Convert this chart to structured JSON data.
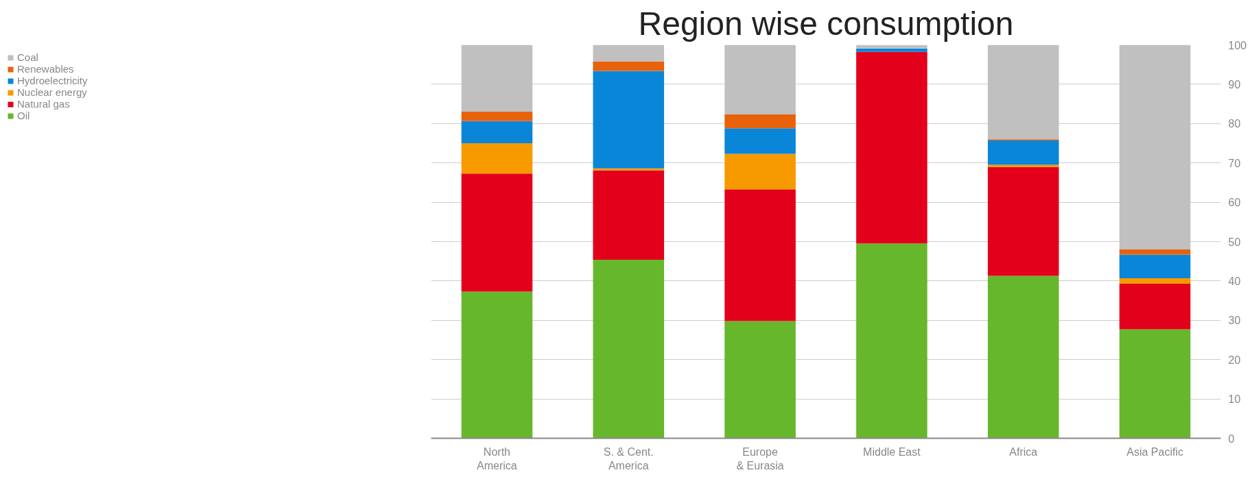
{
  "chart_data": {
    "type": "bar",
    "title": "Region wise consumption",
    "stacked": true,
    "categories": [
      "North\nAmerica",
      "S. & Cent.\nAmerica",
      "Europe\n& Eurasia",
      "Middle East",
      "Africa",
      "Asia Pacific"
    ],
    "series": [
      {
        "name": "Oil",
        "color": "#67b72c",
        "values": [
          37.3,
          45.4,
          29.8,
          49.5,
          41.3,
          27.7
        ]
      },
      {
        "name": "Natural gas",
        "color": "#e3001b",
        "values": [
          30,
          22.7,
          33.5,
          48.7,
          27.6,
          11.6
        ]
      },
      {
        "name": "Nuclear energy",
        "color": "#f79a00",
        "values": [
          7.7,
          0.5,
          9,
          0,
          0.6,
          1.4
        ]
      },
      {
        "name": "Hydroelectricity",
        "color": "#0a86d8",
        "values": [
          5.6,
          24.8,
          6.5,
          0.9,
          6.2,
          6
        ]
      },
      {
        "name": "Renewables",
        "color": "#e8620c",
        "values": [
          2.4,
          2.4,
          3.5,
          0,
          0.3,
          1.3
        ]
      },
      {
        "name": "Coal",
        "color": "#c0c0c0",
        "values": [
          17,
          4.2,
          17.7,
          0.9,
          24,
          52
        ]
      }
    ],
    "ylim": [
      0,
      100
    ],
    "yticks": [
      0,
      10,
      20,
      30,
      40,
      50,
      60,
      70,
      80,
      90,
      100
    ],
    "grid": "y",
    "legend": "top left"
  }
}
